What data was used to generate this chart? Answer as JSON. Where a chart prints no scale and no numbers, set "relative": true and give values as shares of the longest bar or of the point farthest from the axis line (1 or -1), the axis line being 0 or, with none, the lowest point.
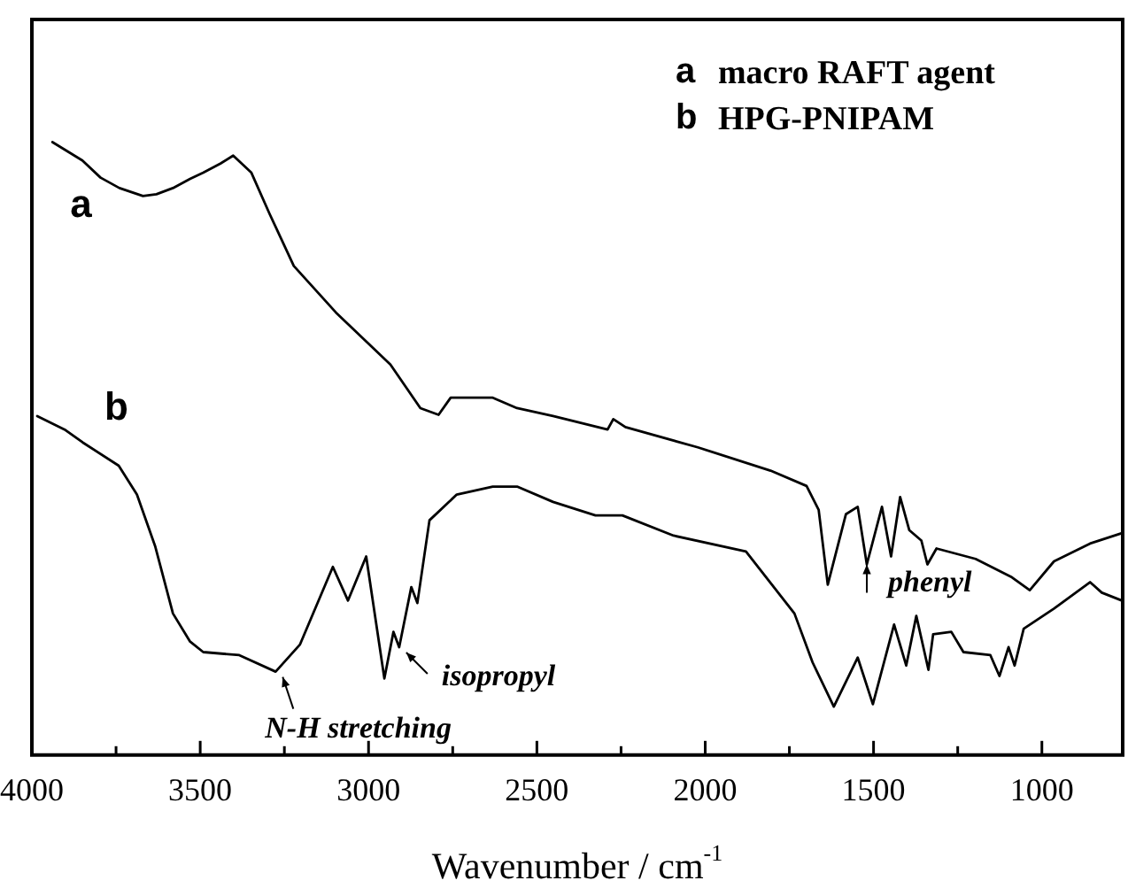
{
  "chart_data": {
    "type": "line",
    "relative": true,
    "xlabel": "Wavenumber / cm$^{-1}$",
    "xlim": [
      4000,
      760
    ],
    "xticks": [
      4000,
      {
        "value": 3750,
        "label": null
      },
      3500,
      {
        "value": 3250,
        "label": null
      },
      3000,
      {
        "value": 2750,
        "label": null
      },
      2500,
      {
        "value": 2250,
        "label": null
      },
      2000,
      {
        "value": 1750,
        "label": null
      },
      1500,
      {
        "value": 1250,
        "label": null
      },
      1000
    ],
    "grid": false,
    "marker": "none",
    "line_style": "solid",
    "series": [
      {
        "name": "a",
        "color": "#000000",
        "x": [
          3939,
          3850,
          3796,
          3740,
          3670,
          3630,
          3581,
          3530,
          3491,
          3440,
          3402,
          3348,
          3294,
          3222,
          3097,
          2935,
          2846,
          2792,
          2756,
          2631,
          2559,
          2452,
          2290,
          2273,
          2237,
          2022,
          1806,
          1699,
          1663,
          1636,
          1582,
          1547,
          1520,
          1475,
          1448,
          1421,
          1394,
          1358,
          1340,
          1313,
          1197,
          1089,
          1036,
          964,
          857,
          762
        ],
        "values": [
          1.0,
          0.97,
          0.942,
          0.925,
          0.912,
          0.915,
          0.925,
          0.94,
          0.95,
          0.965,
          0.978,
          0.95,
          0.883,
          0.798,
          0.722,
          0.637,
          0.566,
          0.555,
          0.583,
          0.583,
          0.566,
          0.553,
          0.531,
          0.548,
          0.535,
          0.502,
          0.464,
          0.439,
          0.4,
          0.278,
          0.393,
          0.405,
          0.311,
          0.405,
          0.324,
          0.421,
          0.367,
          0.35,
          0.311,
          0.337,
          0.32,
          0.29,
          0.269,
          0.316,
          0.345,
          0.362
        ]
      },
      {
        "name": "b",
        "color": "#000000",
        "x": [
          3984,
          3900,
          3849,
          3742,
          3688,
          3634,
          3581,
          3530,
          3491,
          3384,
          3276,
          3204,
          3106,
          3061,
          3007,
          2953,
          2926,
          2909,
          2873,
          2855,
          2819,
          2738,
          2631,
          2559,
          2452,
          2326,
          2246,
          2094,
          1879,
          1735,
          1681,
          1618,
          1547,
          1502,
          1439,
          1403,
          1373,
          1337,
          1323,
          1269,
          1233,
          1153,
          1126,
          1099,
          1081,
          1054,
          964,
          857,
          822,
          762
        ],
        "values": [
          0.553,
          0.53,
          0.51,
          0.472,
          0.425,
          0.341,
          0.231,
          0.185,
          0.168,
          0.163,
          0.136,
          0.18,
          0.307,
          0.252,
          0.324,
          0.125,
          0.201,
          0.176,
          0.274,
          0.248,
          0.383,
          0.425,
          0.438,
          0.438,
          0.413,
          0.391,
          0.391,
          0.358,
          0.332,
          0.231,
          0.151,
          0.079,
          0.159,
          0.083,
          0.213,
          0.146,
          0.227,
          0.139,
          0.197,
          0.201,
          0.168,
          0.163,
          0.129,
          0.176,
          0.146,
          0.206,
          0.239,
          0.282,
          0.265,
          0.252
        ]
      }
    ],
    "annotations": [
      "a macro RAFT agent",
      "b HPG-PNIPAM",
      {
        "text": "N-H stretching",
        "x": 3276,
        "y": 0.136
      },
      {
        "text": "isopropyl",
        "x": 2909,
        "y": 0.176
      },
      {
        "text": "phenyl",
        "x": 1520,
        "y": 0.311
      }
    ]
  }
}
